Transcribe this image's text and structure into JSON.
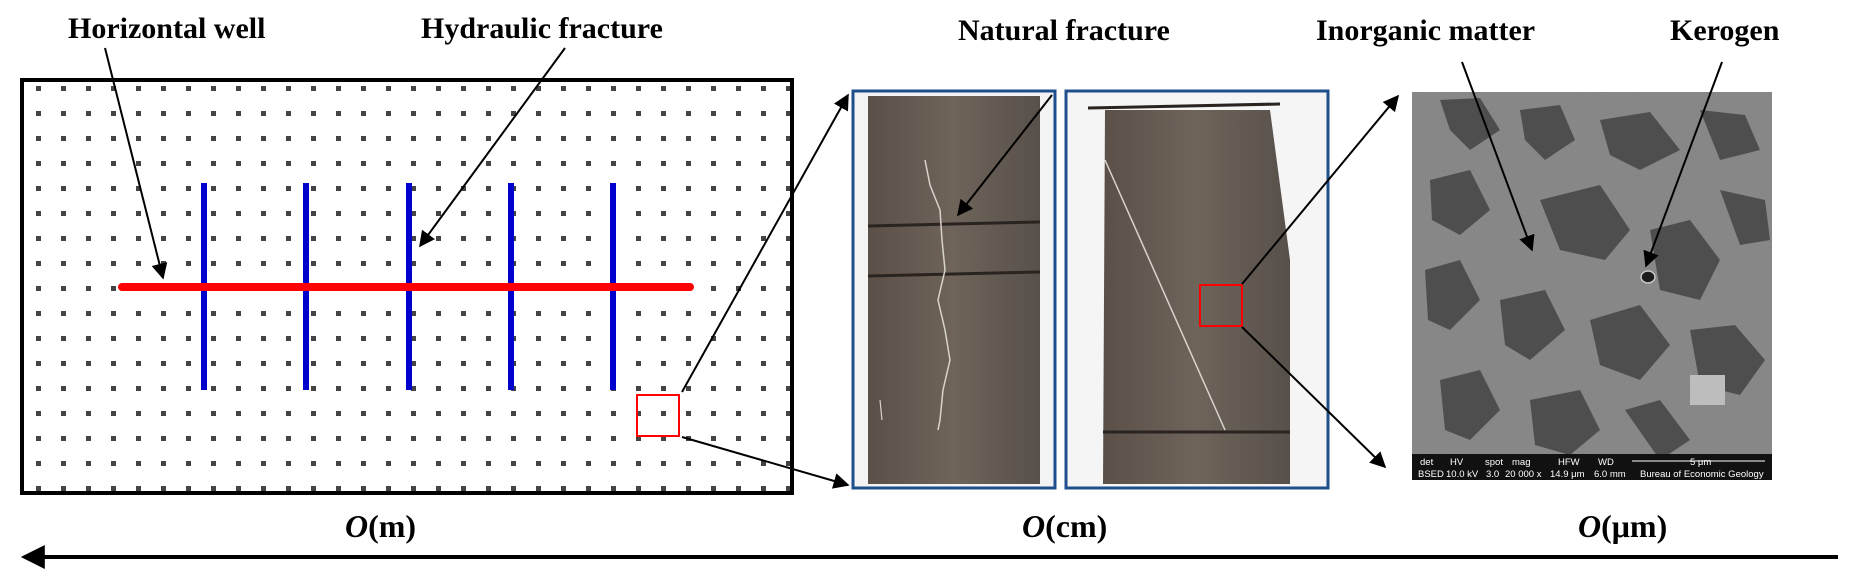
{
  "labels": {
    "horizontal_well": "Horizontal well",
    "hydraulic_fracture": "Hydraulic fracture",
    "natural_fracture": "Natural fracture",
    "inorganic_matter": "Inorganic matter",
    "kerogen": "Kerogen"
  },
  "scales": {
    "meter": {
      "symbol": "O",
      "unit": "(m)"
    },
    "centimeter": {
      "symbol": "O",
      "unit": "(cm)"
    },
    "micrometer": {
      "symbol": "O",
      "unit": "(μm)"
    }
  },
  "sem_databar": {
    "headers": [
      "det",
      "HV",
      "spot",
      "mag",
      "HFW",
      "WD"
    ],
    "values": [
      "BSED",
      "10.0 kV",
      "3.0",
      "20 000 x",
      "14.9 μm",
      "6.0 mm"
    ],
    "scalebar": "5 μm",
    "institution": "Bureau of Economic Geology"
  },
  "colors": {
    "well": "#ff0000",
    "fracture": "#0000cc",
    "frame": "#1f4e8c",
    "highlight": "#ff0000"
  }
}
